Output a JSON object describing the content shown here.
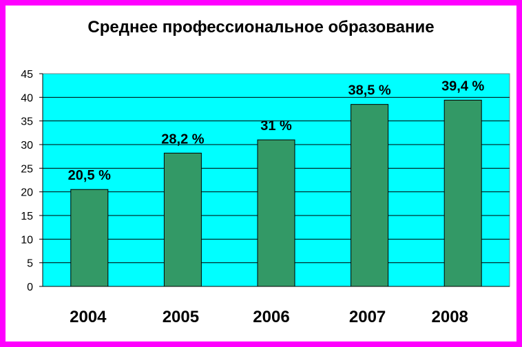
{
  "chart_data": {
    "type": "bar",
    "title": "Среднее профессиональное образование",
    "categories": [
      "2004",
      "2005",
      "2006",
      "2007",
      "2008"
    ],
    "values": [
      20.5,
      28.2,
      31,
      38.5,
      39.4
    ],
    "data_labels": [
      "20,5 %",
      "28,2 %",
      "31 %",
      "38,5 %",
      "39,4 %"
    ],
    "y_ticks": [
      "0",
      "5",
      "10",
      "15",
      "20",
      "25",
      "30",
      "35",
      "40",
      "45"
    ],
    "ylim": [
      0,
      45
    ],
    "grid": true,
    "legend": "none",
    "colors": {
      "bar": "#339966",
      "plot_background": "#00ffff",
      "frame_border": "#ff00ff"
    }
  }
}
